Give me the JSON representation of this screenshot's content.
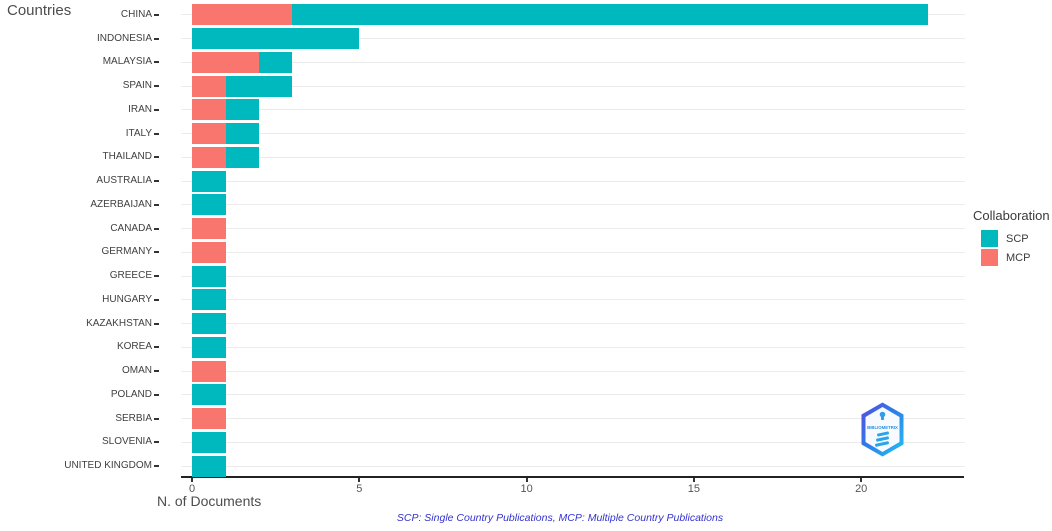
{
  "chart_data": {
    "type": "bar",
    "orientation": "horizontal",
    "stacked": true,
    "ylabel": "Countries",
    "xlabel": "N. of Documents",
    "legend_title": "Collaboration",
    "legend_position": "right",
    "caption": "SCP: Single Country Publications, MCP: Multiple Country Publications",
    "grid": "horizontal-major-only",
    "x_ticks": [
      0,
      5,
      10,
      15,
      20
    ],
    "xlim": [
      0,
      23.1
    ],
    "categories": [
      "CHINA",
      "INDONESIA",
      "MALAYSIA",
      "SPAIN",
      "IRAN",
      "ITALY",
      "THAILAND",
      "AUSTRALIA",
      "AZERBAIJAN",
      "CANADA",
      "GERMANY",
      "GREECE",
      "HUNGARY",
      "KAZAKHSTAN",
      "KOREA",
      "OMAN",
      "POLAND",
      "SERBIA",
      "SLOVENIA",
      "UNITED KINGDOM"
    ],
    "series": [
      {
        "name": "SCP",
        "color": "#00B9BE",
        "values": [
          19,
          5,
          1,
          2,
          1,
          1,
          1,
          1,
          1,
          0,
          0,
          1,
          1,
          1,
          1,
          0,
          1,
          0,
          1,
          1
        ]
      },
      {
        "name": "MCP",
        "color": "#F8766D",
        "values": [
          3,
          0,
          2,
          1,
          1,
          1,
          1,
          0,
          0,
          1,
          1,
          0,
          0,
          0,
          0,
          1,
          0,
          1,
          0,
          0
        ]
      }
    ],
    "stack_order": [
      "MCP",
      "SCP"
    ]
  },
  "colors": {
    "scp": "#00B9BE",
    "mcp": "#F8766D",
    "caption_text": "#3433CE",
    "gridline": "#ECECEC",
    "axis_line": "#222222",
    "axis_text": "#555555",
    "label_text": "#404040"
  },
  "logo": {
    "text": "BIBLIOMETRIX"
  }
}
